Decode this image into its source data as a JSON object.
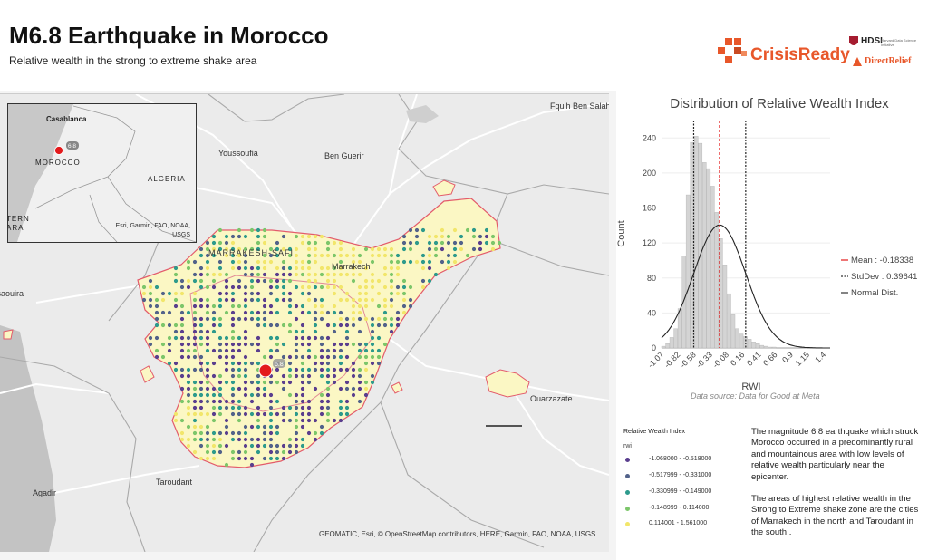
{
  "header": {
    "title": "M6.8 Earthquake in Morocco",
    "subtitle": "Relative wealth in the strong to extreme shake area"
  },
  "logos": {
    "crisis_ready": "CrisisReady",
    "hdsi": "HDSI",
    "hdsi_sub": "Harvard Data Science Initiative",
    "direct_relief": "DirectRelief",
    "crisis_color": "#e8572a"
  },
  "map": {
    "cities": [
      {
        "name": "Fquih Ben Salah"
      },
      {
        "name": "Youssoufia"
      },
      {
        "name": "Ben Guerir"
      },
      {
        "name": "MARRAKESH-SAFI"
      },
      {
        "name": "Marrakech"
      },
      {
        "name": "Essaouira"
      },
      {
        "name": "Ouarzazate"
      },
      {
        "name": "Taroudant"
      },
      {
        "name": "Agadir"
      }
    ],
    "epicenter_magnitude": "6.8",
    "epicenter_color": "#e31a1c",
    "attribution": "GEOMATIC, Esri, © OpenStreetMap contributors, HERE, Garmin, FAO, NOAA, USGS",
    "inset": {
      "labels": [
        {
          "name": "Casablanca"
        },
        {
          "name": "MOROCCO"
        },
        {
          "name": "ALGERIA"
        },
        {
          "name": "TERN"
        },
        {
          "name": "ARA"
        }
      ],
      "badge": "6.8",
      "attribution": "Esri, Garmin, FAO, NOAA, USGS"
    }
  },
  "legend": {
    "title": "Relative Wealth Index",
    "field": "rwi",
    "classes": [
      {
        "label": "-1.068000 - -0.518000",
        "color": "#5a3e8e"
      },
      {
        "label": "-0.517999 - -0.331000",
        "color": "#52628a"
      },
      {
        "label": "-0.330999 - -0.149000",
        "color": "#2d9a8c"
      },
      {
        "label": "-0.148999 - 0.114000",
        "color": "#7cc66a"
      },
      {
        "label": "0.114001 - 1.561000",
        "color": "#f2e66a"
      }
    ]
  },
  "description": {
    "p1": "The magnitude 6.8 earthquake which struck Morocco occurred in a predominantly rural and mountainous area with low levels of relative wealth particularly near the epicenter.",
    "p2": "The areas of highest relative wealth in the Strong to Extreme shake zone are the cities of Marrakech in the north and Taroudant in the south.."
  },
  "chart_data": {
    "type": "bar",
    "title": "Distribution of Relative Wealth Index",
    "xlabel": "RWI",
    "ylabel": "Count",
    "source": "Data source: Data for Good at Meta",
    "bin_start": -1.07,
    "bin_width": 0.0625,
    "values": [
      2,
      5,
      12,
      22,
      45,
      105,
      175,
      235,
      242,
      234,
      212,
      205,
      185,
      155,
      125,
      95,
      62,
      38,
      22,
      16,
      13,
      10,
      7,
      5,
      3,
      2,
      1,
      1
    ],
    "ylim": [
      0,
      260
    ],
    "xlim": [
      -1.07,
      1.5
    ],
    "yticks": [
      0,
      40,
      80,
      120,
      160,
      200,
      240
    ],
    "xticks": [
      -1.07,
      -0.82,
      -0.58,
      -0.33,
      -0.08,
      0.16,
      0.41,
      0.66,
      0.9,
      1.15,
      1.4
    ],
    "xtick_labels": [
      "-1.07",
      "-0.82",
      "-0.58",
      "-0.33",
      "-0.08",
      "0.16",
      "0.41",
      "0.66",
      "0.9",
      "1.15",
      "1.4"
    ],
    "mean": -0.18338,
    "stddev": 0.39641,
    "legend": {
      "mean": "Mean : -0.18338",
      "stddev": "StdDev : 0.39641",
      "normal": "Normal Dist."
    },
    "bar_color": "#d4d4d4",
    "mean_color": "#e31a1c"
  }
}
